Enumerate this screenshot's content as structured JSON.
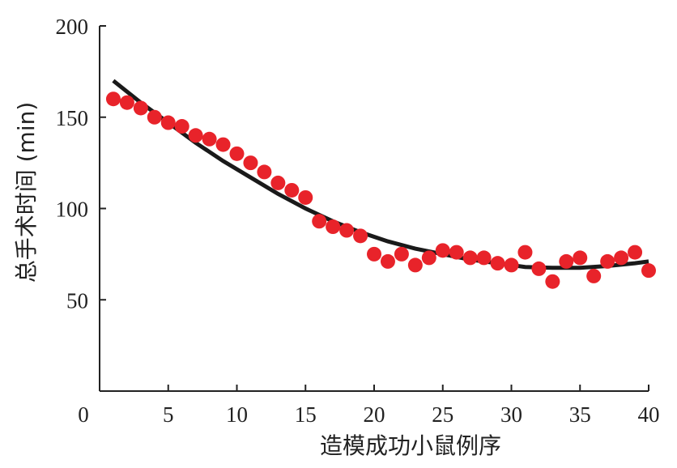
{
  "chart_data": {
    "type": "scatter",
    "title": "",
    "xlabel": "造模成功小鼠例序",
    "ylabel": "总手术时间 (min)",
    "xlim": [
      0,
      40
    ],
    "ylim": [
      0,
      200
    ],
    "xticks": [
      0,
      5,
      10,
      15,
      20,
      25,
      30,
      35,
      40
    ],
    "yticks": [
      50,
      100,
      150,
      200
    ],
    "grid": false,
    "point_color": "#e8232a",
    "line_color": "#1a1a1a",
    "series": [
      {
        "type": "scatter",
        "x": [
          1,
          2,
          3,
          4,
          5,
          6,
          7,
          8,
          9,
          10,
          11,
          12,
          13,
          14,
          15,
          16,
          17,
          18,
          19,
          20,
          21,
          22,
          23,
          24,
          25,
          26,
          27,
          28,
          29,
          30,
          31,
          32,
          33,
          34,
          35,
          36,
          37,
          38,
          39,
          40
        ],
        "y": [
          160,
          158,
          155,
          150,
          147,
          145,
          140,
          138,
          135,
          130,
          125,
          120,
          114,
          110,
          106,
          93,
          90,
          88,
          85,
          75,
          71,
          75,
          69,
          73,
          77,
          76,
          73,
          73,
          70,
          69,
          76,
          67,
          60,
          71,
          73,
          63,
          71,
          73,
          76,
          66
        ]
      },
      {
        "type": "line",
        "x": [
          1,
          3,
          5,
          7,
          9,
          11,
          13,
          15,
          17,
          19,
          21,
          23,
          25,
          27,
          29,
          31,
          33,
          35,
          37,
          39,
          40
        ],
        "y": [
          170,
          158,
          147,
          136,
          126,
          117,
          108,
          100,
          93,
          87,
          82,
          78,
          75,
          72,
          70,
          68,
          67.5,
          67.5,
          68.5,
          70,
          71
        ]
      }
    ]
  }
}
